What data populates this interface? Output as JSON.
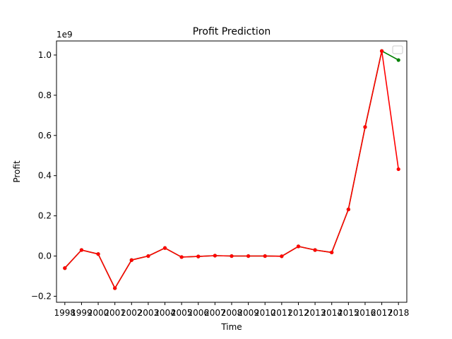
{
  "chart_data": {
    "type": "line",
    "title": "Profit Prediction",
    "xlabel": "Time",
    "ylabel": "Profit",
    "y_offset_label": "1e9",
    "x": [
      1998,
      1999,
      2000,
      2001,
      2002,
      2003,
      2004,
      2005,
      2006,
      2007,
      2008,
      2009,
      2010,
      2011,
      2012,
      2013,
      2014,
      2015,
      2016,
      2017,
      2018
    ],
    "x_tick_labels": [
      "1998",
      "1999",
      "2000",
      "2001",
      "2002",
      "2003",
      "2004",
      "2005",
      "2006",
      "2007",
      "2008",
      "2009",
      "2010",
      "2011",
      "2012",
      "2013",
      "2014",
      "2015",
      "2016",
      "2017",
      "2018"
    ],
    "y_ticks": [
      -0.2,
      0.0,
      0.2,
      0.4,
      0.6,
      0.8,
      1.0
    ],
    "y_tick_labels": [
      "−0.2",
      "0.0",
      "0.2",
      "0.4",
      "0.6",
      "0.8",
      "1.0"
    ],
    "xlim": [
      1997.5,
      2018.5
    ],
    "ylim": [
      -0.23,
      1.07
    ],
    "y_unit_scale": 1000000000,
    "grid": false,
    "legend": "top-right (empty)",
    "series": [
      {
        "color": "#008000",
        "values": [
          -0.06,
          0.03,
          0.01,
          -0.16,
          -0.02,
          0.0,
          0.04,
          -0.005,
          -0.002,
          0.002,
          0.0,
          0.0,
          0.0,
          -0.001,
          0.048,
          0.03,
          0.018,
          0.232,
          0.642,
          1.02,
          0.975
        ]
      },
      {
        "color": "#ff0000",
        "values": [
          -0.06,
          0.03,
          0.01,
          -0.16,
          -0.02,
          0.0,
          0.04,
          -0.005,
          -0.002,
          0.002,
          0.0,
          0.0,
          0.0,
          -0.001,
          0.048,
          0.03,
          0.018,
          0.232,
          0.642,
          1.02,
          0.432
        ]
      }
    ]
  }
}
